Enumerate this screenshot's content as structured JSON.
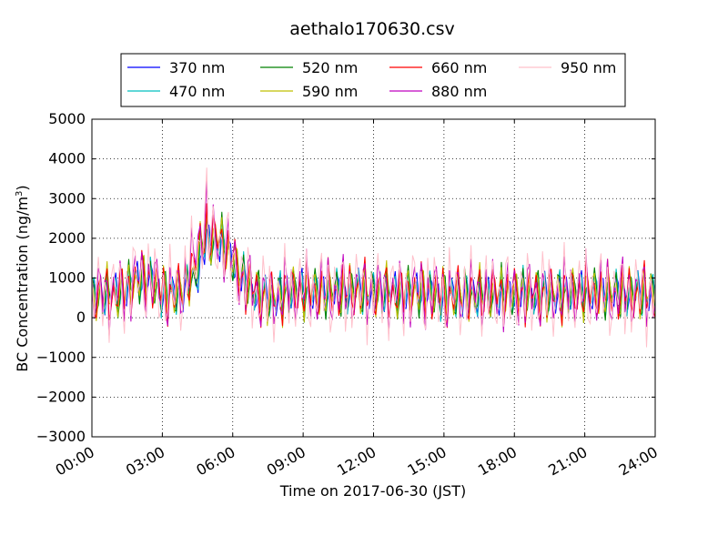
{
  "chart_data": {
    "type": "line",
    "title": "aethalo170630.csv",
    "xlabel": "Time on 2017-06-30 (JST)",
    "ylabel_main": "BC Concentration (ng/m",
    "ylabel_sup": "3",
    "ylabel_end": ")",
    "xlim": [
      "00:00",
      "24:00"
    ],
    "ylim": [
      -3000,
      5000
    ],
    "x_ticks": [
      "00:00",
      "03:00",
      "06:00",
      "09:00",
      "12:00",
      "15:00",
      "18:00",
      "21:00",
      "24:00"
    ],
    "y_ticks": [
      "-3000",
      "-2000",
      "-1000",
      "0",
      "1000",
      "2000",
      "3000",
      "4000",
      "5000"
    ],
    "grid": true,
    "legend_position": "top",
    "legend_columns": 4,
    "series": [
      {
        "name": "370 nm",
        "color": "#0000ff",
        "amp": 1.0,
        "spike": 1.0,
        "values": [
          520,
          600,
          600,
          720,
          1000,
          1000,
          650,
          600,
          720,
          1000,
          1900,
          2000,
          1600,
          1000,
          700,
          500,
          500,
          650,
          700,
          650,
          650,
          650,
          650,
          700,
          650,
          650,
          650,
          600,
          700,
          650,
          600,
          550,
          600,
          600,
          600,
          600,
          600,
          600,
          600,
          600,
          600,
          600,
          650,
          650,
          650,
          600,
          600,
          600,
          600,
          600
        ]
      },
      {
        "name": "470 nm",
        "color": "#00bfbf",
        "amp": 1.15,
        "spike": 1.05,
        "values": [
          520,
          600,
          600,
          720,
          1000,
          1000,
          650,
          600,
          720,
          1000,
          1900,
          2000,
          1600,
          1000,
          700,
          500,
          500,
          650,
          700,
          650,
          650,
          650,
          650,
          700,
          650,
          650,
          650,
          600,
          700,
          650,
          600,
          550,
          600,
          600,
          600,
          600,
          600,
          600,
          600,
          600,
          600,
          600,
          650,
          650,
          650,
          600,
          600,
          600,
          600,
          600
        ]
      },
      {
        "name": "520 nm",
        "color": "#008000",
        "amp": 1.25,
        "spike": 1.12,
        "values": [
          520,
          600,
          600,
          720,
          1000,
          1000,
          650,
          600,
          720,
          1000,
          1900,
          2000,
          1600,
          1000,
          700,
          500,
          500,
          650,
          700,
          650,
          650,
          650,
          650,
          700,
          650,
          650,
          650,
          600,
          700,
          650,
          600,
          550,
          600,
          600,
          600,
          600,
          600,
          600,
          600,
          600,
          600,
          600,
          650,
          650,
          650,
          600,
          600,
          600,
          600,
          600
        ]
      },
      {
        "name": "590 nm",
        "color": "#bfbf00",
        "amp": 1.35,
        "spike": 1.2,
        "values": [
          520,
          600,
          600,
          720,
          1000,
          1000,
          650,
          600,
          720,
          1000,
          1900,
          2000,
          1600,
          1000,
          700,
          500,
          500,
          650,
          700,
          650,
          650,
          650,
          650,
          700,
          650,
          650,
          650,
          600,
          700,
          650,
          600,
          550,
          600,
          600,
          600,
          600,
          600,
          600,
          600,
          600,
          600,
          600,
          650,
          650,
          650,
          600,
          600,
          600,
          600,
          600
        ]
      },
      {
        "name": "660 nm",
        "color": "#ff0000",
        "amp": 1.45,
        "spike": 1.3,
        "values": [
          520,
          600,
          600,
          720,
          1000,
          1000,
          650,
          600,
          720,
          1000,
          1900,
          2000,
          1600,
          1000,
          700,
          500,
          500,
          650,
          700,
          650,
          650,
          650,
          650,
          700,
          650,
          650,
          650,
          600,
          700,
          650,
          600,
          550,
          600,
          600,
          600,
          600,
          600,
          600,
          600,
          600,
          600,
          600,
          650,
          650,
          650,
          600,
          600,
          600,
          600,
          600
        ]
      },
      {
        "name": "880 nm",
        "color": "#bf00bf",
        "amp": 1.7,
        "spike": 1.5,
        "values": [
          520,
          600,
          600,
          720,
          1000,
          1000,
          650,
          600,
          720,
          1000,
          1900,
          2000,
          1600,
          1000,
          700,
          500,
          500,
          650,
          700,
          650,
          650,
          650,
          650,
          700,
          650,
          650,
          650,
          600,
          700,
          650,
          600,
          550,
          600,
          600,
          600,
          600,
          600,
          600,
          600,
          600,
          600,
          600,
          650,
          650,
          650,
          600,
          600,
          600,
          600,
          600
        ]
      },
      {
        "name": "950 nm",
        "color": "#ffc0cb",
        "amp": 2.1,
        "spike": 1.45,
        "values": [
          520,
          600,
          600,
          720,
          1000,
          1000,
          650,
          600,
          720,
          1000,
          1900,
          2000,
          1600,
          1000,
          700,
          500,
          500,
          650,
          700,
          650,
          650,
          650,
          650,
          700,
          650,
          650,
          650,
          600,
          700,
          650,
          600,
          550,
          600,
          600,
          600,
          600,
          600,
          600,
          600,
          600,
          600,
          600,
          650,
          650,
          650,
          600,
          600,
          600,
          600,
          600
        ]
      }
    ]
  }
}
